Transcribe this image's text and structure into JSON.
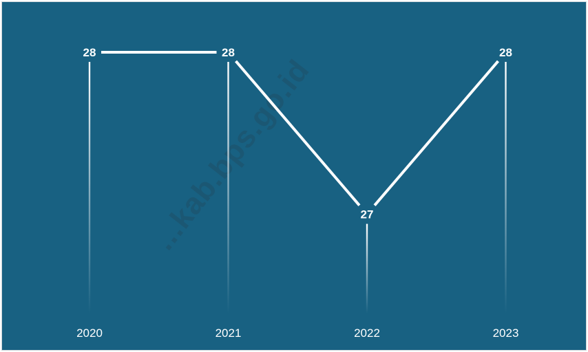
{
  "chart_data": {
    "type": "line",
    "title": "",
    "xlabel": "",
    "ylabel": "",
    "categories": [
      "2020",
      "2021",
      "2022",
      "2023"
    ],
    "series": [
      {
        "values": [
          28,
          28,
          27,
          28
        ]
      }
    ],
    "ylim": [
      26,
      28
    ],
    "grid": false,
    "legend": "none"
  },
  "watermark": "...kab.bps.go.id",
  "colors": {
    "background": "#186182",
    "line": "#ffffff",
    "text": "#ffffff"
  }
}
